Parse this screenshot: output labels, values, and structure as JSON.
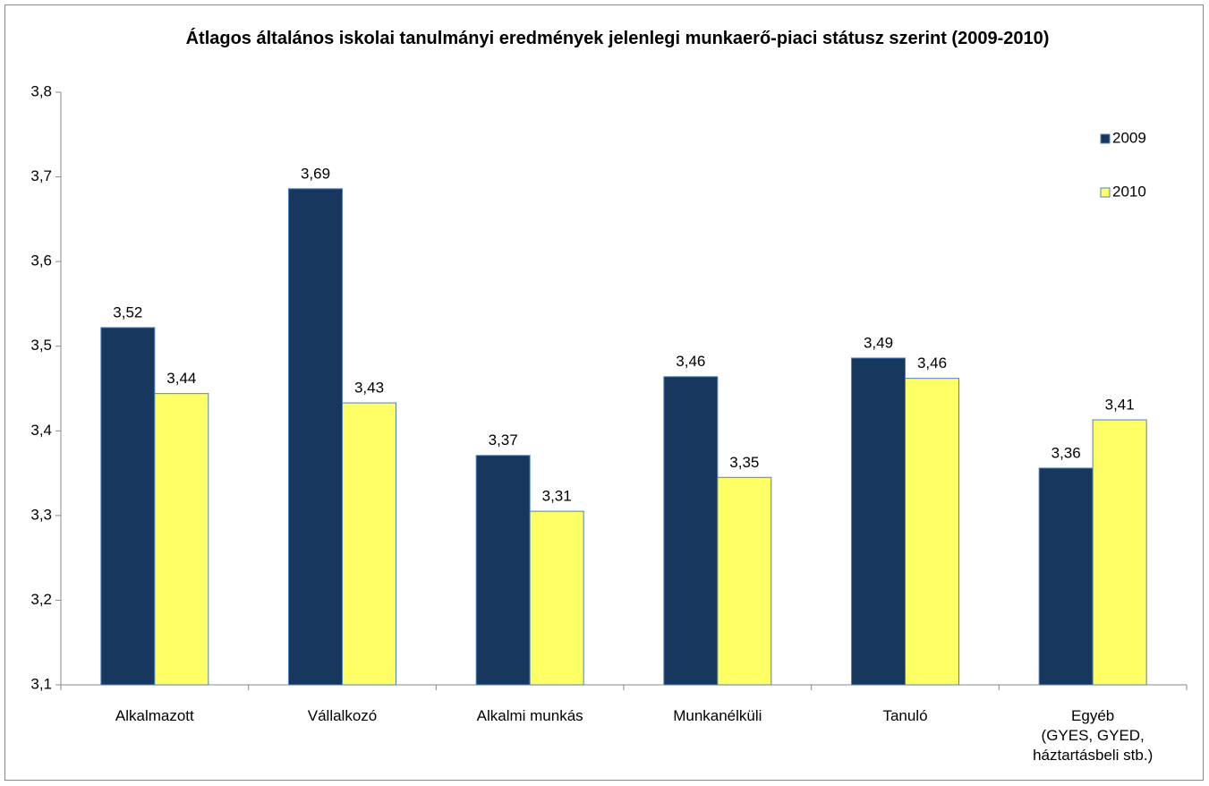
{
  "chart_data": {
    "type": "bar",
    "title": "Átlagos általános iskolai tanulmányi eredmények jelenlegi munkaerő-piaci státusz szerint (2009-2010)",
    "categories": [
      "Alkalmazott",
      "Vállalkozó",
      "Alkalmi munkás",
      "Munkanélküli",
      "Tanuló",
      "Egyéb\n(GYES, GYED,\nháztartásbeli stb.)"
    ],
    "series": [
      {
        "name": "2009",
        "color": "#17375e",
        "values": [
          3.522,
          3.686,
          3.371,
          3.464,
          3.486,
          3.356
        ],
        "value_labels": [
          "3,52",
          "3,69",
          "3,37",
          "3,46",
          "3,49",
          "3,36"
        ]
      },
      {
        "name": "2010",
        "color": "#ffff66",
        "values": [
          3.444,
          3.433,
          3.305,
          3.345,
          3.462,
          3.413
        ],
        "value_labels": [
          "3,44",
          "3,43",
          "3,31",
          "3,35",
          "3,46",
          "3,41"
        ]
      }
    ],
    "ylim": [
      3.1,
      3.8
    ],
    "yticks": [
      {
        "value": 3.1,
        "label": "3,1"
      },
      {
        "value": 3.2,
        "label": "3,2"
      },
      {
        "value": 3.3,
        "label": "3,3"
      },
      {
        "value": 3.4,
        "label": "3,4"
      },
      {
        "value": 3.5,
        "label": "3,5"
      },
      {
        "value": 3.6,
        "label": "3,6"
      },
      {
        "value": 3.7,
        "label": "3,7"
      },
      {
        "value": 3.8,
        "label": "3,8"
      }
    ],
    "grid": false,
    "legend": "right"
  }
}
